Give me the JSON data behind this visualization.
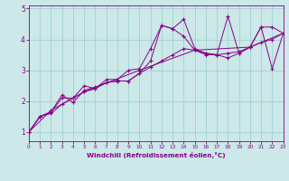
{
  "xlabel": "Windchill (Refroidissement éolien,°C)",
  "background_color": "#cce8e8",
  "grid_color": "#99cccc",
  "line_color": "#880088",
  "xlim": [
    0,
    23
  ],
  "ylim": [
    0.7,
    5.1
  ],
  "yticks": [
    1,
    2,
    3,
    4,
    5
  ],
  "xticks": [
    0,
    1,
    2,
    3,
    4,
    5,
    6,
    7,
    8,
    9,
    10,
    11,
    12,
    13,
    14,
    15,
    16,
    17,
    18,
    19,
    20,
    21,
    22,
    23
  ],
  "series1": [
    [
      0,
      1.0
    ],
    [
      1,
      1.5
    ],
    [
      2,
      1.6
    ],
    [
      3,
      1.9
    ],
    [
      4,
      2.1
    ],
    [
      5,
      2.5
    ],
    [
      6,
      2.4
    ],
    [
      7,
      2.7
    ],
    [
      8,
      2.7
    ],
    [
      9,
      3.0
    ],
    [
      10,
      3.05
    ],
    [
      11,
      3.7
    ],
    [
      12,
      4.45
    ],
    [
      13,
      4.35
    ],
    [
      14,
      4.65
    ],
    [
      15,
      3.7
    ],
    [
      16,
      3.55
    ],
    [
      17,
      3.5
    ],
    [
      18,
      4.75
    ],
    [
      19,
      3.55
    ],
    [
      20,
      3.75
    ],
    [
      21,
      4.4
    ],
    [
      22,
      4.4
    ],
    [
      23,
      4.2
    ]
  ],
  "series2": [
    [
      0,
      1.0
    ],
    [
      1,
      1.5
    ],
    [
      2,
      1.65
    ],
    [
      3,
      2.2
    ],
    [
      4,
      1.95
    ],
    [
      5,
      2.35
    ],
    [
      6,
      2.45
    ],
    [
      7,
      2.6
    ],
    [
      8,
      2.65
    ],
    [
      9,
      2.65
    ],
    [
      10,
      2.9
    ],
    [
      11,
      3.3
    ],
    [
      12,
      4.45
    ],
    [
      13,
      4.35
    ],
    [
      14,
      4.1
    ],
    [
      15,
      3.65
    ],
    [
      16,
      3.55
    ],
    [
      17,
      3.5
    ],
    [
      18,
      3.4
    ],
    [
      19,
      3.55
    ],
    [
      20,
      3.75
    ],
    [
      21,
      4.4
    ],
    [
      22,
      3.05
    ],
    [
      23,
      4.2
    ]
  ],
  "series3": [
    [
      0,
      1.0
    ],
    [
      1,
      1.5
    ],
    [
      2,
      1.65
    ],
    [
      3,
      2.1
    ],
    [
      4,
      2.1
    ],
    [
      5,
      2.3
    ],
    [
      6,
      2.4
    ],
    [
      7,
      2.6
    ],
    [
      8,
      2.65
    ],
    [
      9,
      2.65
    ],
    [
      10,
      2.9
    ],
    [
      11,
      3.1
    ],
    [
      12,
      3.3
    ],
    [
      13,
      3.5
    ],
    [
      14,
      3.7
    ],
    [
      15,
      3.65
    ],
    [
      16,
      3.5
    ],
    [
      17,
      3.5
    ],
    [
      18,
      3.55
    ],
    [
      19,
      3.6
    ],
    [
      20,
      3.75
    ],
    [
      21,
      3.9
    ],
    [
      22,
      4.0
    ],
    [
      23,
      4.2
    ]
  ],
  "series4": [
    [
      0,
      1.0
    ],
    [
      2,
      1.7
    ],
    [
      5,
      2.3
    ],
    [
      10,
      3.0
    ],
    [
      15,
      3.65
    ],
    [
      20,
      3.75
    ],
    [
      23,
      4.2
    ]
  ]
}
